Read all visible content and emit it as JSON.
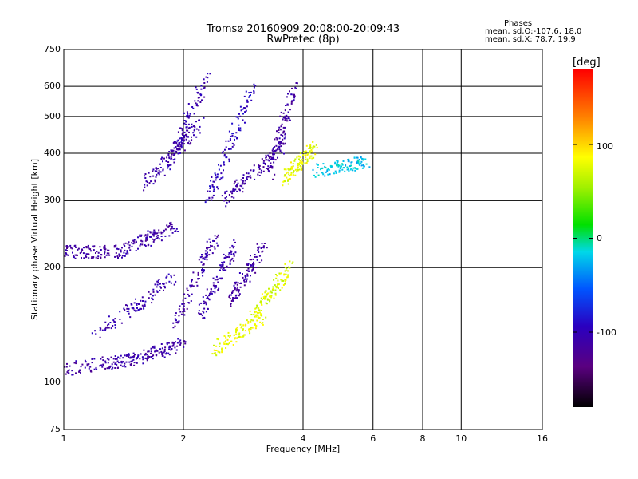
{
  "header": {
    "title_line1": "Tromsø 20160909 20:08:00-20:09:43",
    "title_line2": "RwPretec (8p)"
  },
  "phases_box": {
    "heading": "Phases",
    "line_o": "mean, sd,O:-107.6, 18.0",
    "line_x": "mean, sd,X:  78.7, 19.9"
  },
  "colorbar": {
    "unit": "[deg]",
    "ticks": [
      "100",
      "0",
      "-100"
    ]
  },
  "chart_data": {
    "type": "scatter",
    "title": "Tromsø 20160909 20:08:00-20:09:43",
    "subtitle": "RwPretec (8p)",
    "xlabel": "Frequency [MHz]",
    "ylabel": "Stationary phase Virtual Height [km]",
    "x_scale": "log",
    "y_scale": "log",
    "xlim": [
      1,
      16
    ],
    "ylim": [
      75,
      750
    ],
    "x_ticks": [
      1,
      2,
      4,
      6,
      8,
      10,
      16
    ],
    "x_tick_labels": [
      "1",
      "2",
      "4",
      "6",
      "8",
      "10",
      "16"
    ],
    "y_ticks": [
      75,
      100,
      200,
      300,
      400,
      500,
      600,
      750
    ],
    "y_tick_labels": [
      "75",
      "100",
      "200",
      "300",
      "400",
      "500",
      "600",
      "750"
    ],
    "grid": true,
    "color_scale": {
      "label": "[deg]",
      "range": [
        -180,
        180
      ],
      "ticks": [
        100,
        0,
        -100
      ]
    },
    "traces": [
      {
        "x": [
          1.0,
          1.5
        ],
        "y": [
          108,
          115
        ],
        "phase": -110
      },
      {
        "x": [
          1.5,
          2.0
        ],
        "y": [
          115,
          126
        ],
        "phase": -110
      },
      {
        "x": [
          1.2,
          1.9
        ],
        "y": [
          132,
          190
        ],
        "phase": -105
      },
      {
        "x": [
          1.9,
          2.4
        ],
        "y": [
          140,
          240
        ],
        "phase": -110
      },
      {
        "x": [
          2.2,
          2.7
        ],
        "y": [
          150,
          230
        ],
        "phase": -108
      },
      {
        "x": [
          2.6,
          3.2
        ],
        "y": [
          160,
          230
        ],
        "phase": -112
      },
      {
        "x": [
          2.4,
          3.2
        ],
        "y": [
          122,
          150
        ],
        "phase": 80
      },
      {
        "x": [
          3.0,
          3.7
        ],
        "y": [
          150,
          200
        ],
        "phase": 75
      },
      {
        "x": [
          1.0,
          1.4
        ],
        "y": [
          220,
          220
        ],
        "phase": -115
      },
      {
        "x": [
          1.4,
          1.9
        ],
        "y": [
          222,
          255
        ],
        "phase": -110
      },
      {
        "x": [
          1.6,
          2.2
        ],
        "y": [
          330,
          480
        ],
        "phase": -108
      },
      {
        "x": [
          1.8,
          2.3
        ],
        "y": [
          350,
          650
        ],
        "phase": -105
      },
      {
        "x": [
          2.3,
          3.0
        ],
        "y": [
          300,
          600
        ],
        "phase": -95
      },
      {
        "x": [
          2.5,
          3.6
        ],
        "y": [
          300,
          420
        ],
        "phase": -110
      },
      {
        "x": [
          3.3,
          3.8
        ],
        "y": [
          350,
          600
        ],
        "phase": -112
      },
      {
        "x": [
          3.6,
          4.3
        ],
        "y": [
          340,
          420
        ],
        "phase": 80
      },
      {
        "x": [
          4.3,
          5.8
        ],
        "y": [
          360,
          380
        ],
        "phase": -20
      }
    ]
  }
}
